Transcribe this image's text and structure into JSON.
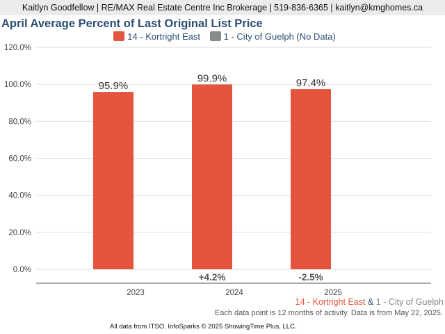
{
  "header": {
    "text": "Kaitlyn Goodfellow | RE/MAX Real Estate Centre Inc Brokerage | 519-836-6365 | kaitlyn@kmghomes.ca"
  },
  "chart_data": {
    "type": "bar",
    "title": "April Average Percent of Last Original List Price",
    "categories": [
      "2023",
      "2024",
      "2025"
    ],
    "series": [
      {
        "name": "14 - Kortright East",
        "color": "#e5553d",
        "values": [
          95.9,
          99.9,
          97.4
        ],
        "labels": [
          "95.9%",
          "99.9%",
          "97.4%"
        ]
      },
      {
        "name": "1 - City of Guelph (No Data)",
        "color": "#868c8a",
        "values": [
          null,
          null,
          null
        ]
      }
    ],
    "change_labels": [
      "",
      "+4.2%",
      "-2.5%"
    ],
    "yticks": [
      "0.0%",
      "20.0%",
      "40.0%",
      "60.0%",
      "80.0%",
      "100.0%",
      "120.0%"
    ],
    "ylim": [
      0,
      120
    ],
    "grid": true,
    "legend": "top-center"
  },
  "footer": {
    "area1": "14 - Kortright East",
    "amp": "&",
    "area2": "1 - City of Guelph",
    "note": "Each data point is 12 months of activity. Data is from May 22, 2025.",
    "source": "All data from ITSO. InfoSparks © 2025 ShowingTime Plus, LLC."
  }
}
